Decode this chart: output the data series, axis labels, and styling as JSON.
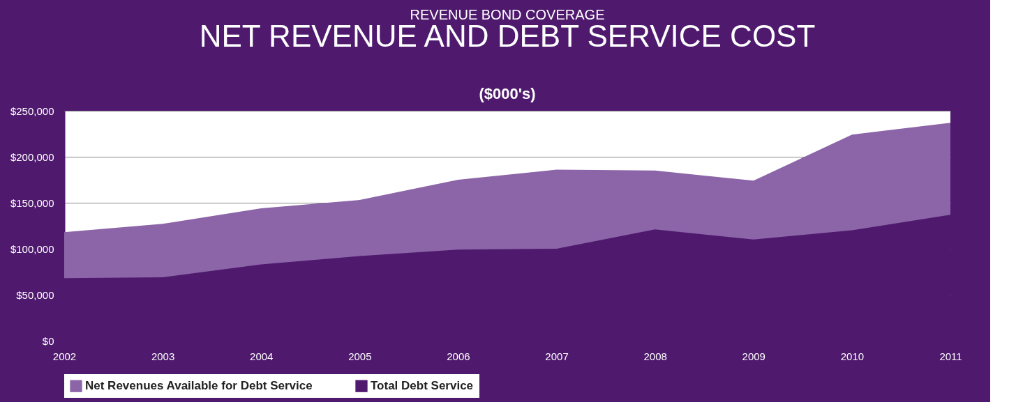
{
  "chart_data": {
    "type": "area",
    "title": "NET REVENUE AND DEBT SERVICE COST",
    "subtitle": "REVENUE BOND COVERAGE",
    "annotations": [
      "($000's)"
    ],
    "x": [
      2002,
      2003,
      2004,
      2005,
      2006,
      2007,
      2008,
      2009,
      2010,
      2011
    ],
    "series": [
      {
        "name": "Net Revenues Available for Debt Service",
        "color": "#8c65a8",
        "values": [
          118000,
          127000,
          144000,
          153000,
          175000,
          186000,
          185000,
          174000,
          224000,
          237000
        ]
      },
      {
        "name": "Total Debt Service",
        "color": "#4f1a6e",
        "values": [
          68000,
          69000,
          83000,
          92000,
          99000,
          100000,
          121000,
          110000,
          120000,
          137000
        ]
      }
    ],
    "xlim": [
      2002,
      2011
    ],
    "xticks": [
      2002,
      2003,
      2004,
      2005,
      2006,
      2007,
      2008,
      2009,
      2010,
      2011
    ],
    "ylim": [
      0,
      250000
    ],
    "yticks": [
      {
        "value": 0,
        "label": "$0"
      },
      {
        "value": 50000,
        "label": "$50,000"
      },
      {
        "value": 100000,
        "label": "$100,000"
      },
      {
        "value": 150000,
        "label": "$150,000"
      },
      {
        "value": 200000,
        "label": "$200,000"
      },
      {
        "value": 250000,
        "label": "$250,000"
      }
    ],
    "grid": "y",
    "legend": "bottom"
  }
}
